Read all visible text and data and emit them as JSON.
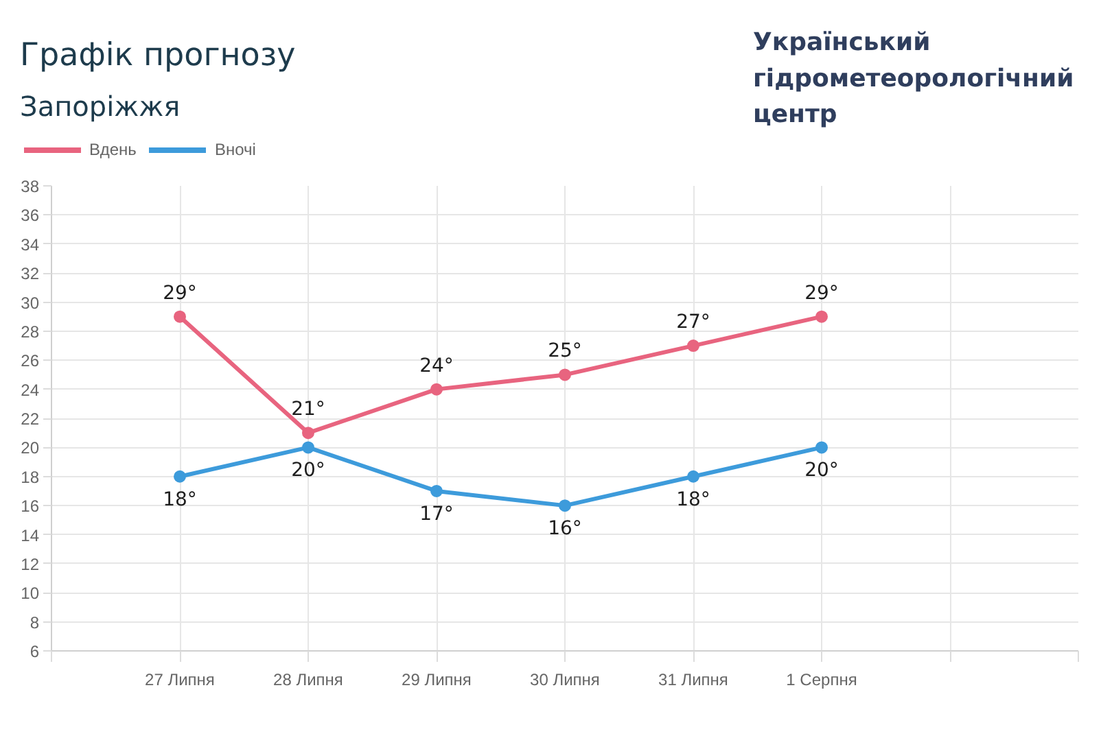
{
  "chart_data": {
    "type": "line",
    "title": "Графік прогнозу",
    "subtitle": "Запоріжжя",
    "annotations": [
      "Український гідрометеорологічний центр"
    ],
    "categories": [
      null,
      "27 Липня",
      "28 Липня",
      "29 Липня",
      "30 Липня",
      "31 Липня",
      "1 Серпня",
      null,
      null
    ],
    "series": [
      {
        "name": "Вдень",
        "color": "#e8647f",
        "values": [
          null,
          29,
          21,
          24,
          25,
          27,
          29,
          null,
          null
        ],
        "value_labels": [
          null,
          "29°",
          "21°",
          "24°",
          "25°",
          "27°",
          "29°",
          null,
          null
        ]
      },
      {
        "name": "Вночі",
        "color": "#3d9bdb",
        "values": [
          null,
          18,
          20,
          17,
          16,
          18,
          20,
          null,
          null
        ],
        "value_labels": [
          null,
          "18°",
          "20°",
          "17°",
          "16°",
          "18°",
          "20°",
          null,
          null
        ]
      }
    ],
    "ylim": [
      6,
      38
    ],
    "yticks": [
      6,
      8,
      10,
      12,
      14,
      16,
      18,
      20,
      22,
      24,
      26,
      28,
      30,
      32,
      34,
      36,
      38
    ],
    "grid": true,
    "legend": "top left",
    "marker": "circle",
    "line_style": "solid"
  }
}
